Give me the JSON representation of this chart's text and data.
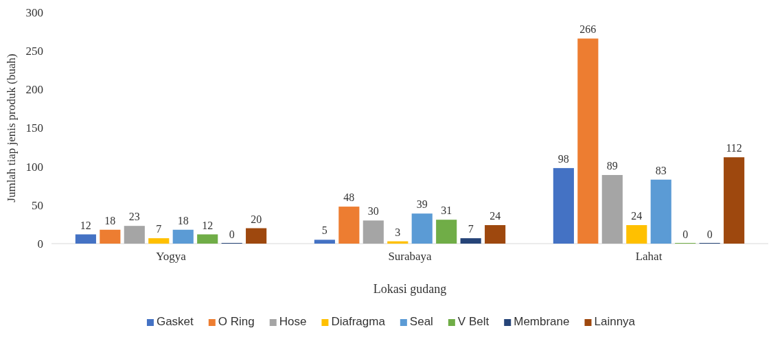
{
  "chart_data": {
    "type": "bar",
    "xlabel": "Lokasi gudang",
    "ylabel": "Jumlah tiap jenis produk (buah)",
    "categories": [
      "Yogya",
      "Surabaya",
      "Lahat"
    ],
    "series": [
      {
        "name": "Gasket",
        "color": "#4472c4",
        "values": [
          12,
          5,
          98
        ]
      },
      {
        "name": "O Ring",
        "color": "#ed7d31",
        "values": [
          18,
          48,
          266
        ]
      },
      {
        "name": "Hose",
        "color": "#a5a5a5",
        "values": [
          23,
          30,
          89
        ]
      },
      {
        "name": "Diafragma",
        "color": "#ffc000",
        "values": [
          7,
          3,
          24
        ]
      },
      {
        "name": "Seal",
        "color": "#5b9bd5",
        "values": [
          18,
          39,
          83
        ]
      },
      {
        "name": "V Belt",
        "color": "#70ad47",
        "values": [
          12,
          31,
          0
        ]
      },
      {
        "name": "Membrane",
        "color": "#264478",
        "values": [
          0,
          7,
          0
        ]
      },
      {
        "name": "Lainnya",
        "color": "#9e480e",
        "values": [
          20,
          24,
          112
        ]
      }
    ],
    "ylim": [
      0,
      300
    ],
    "yticks": [
      0,
      50,
      100,
      150,
      200,
      250,
      300
    ],
    "data_labels": true,
    "grid": false,
    "legend": "bottom"
  }
}
